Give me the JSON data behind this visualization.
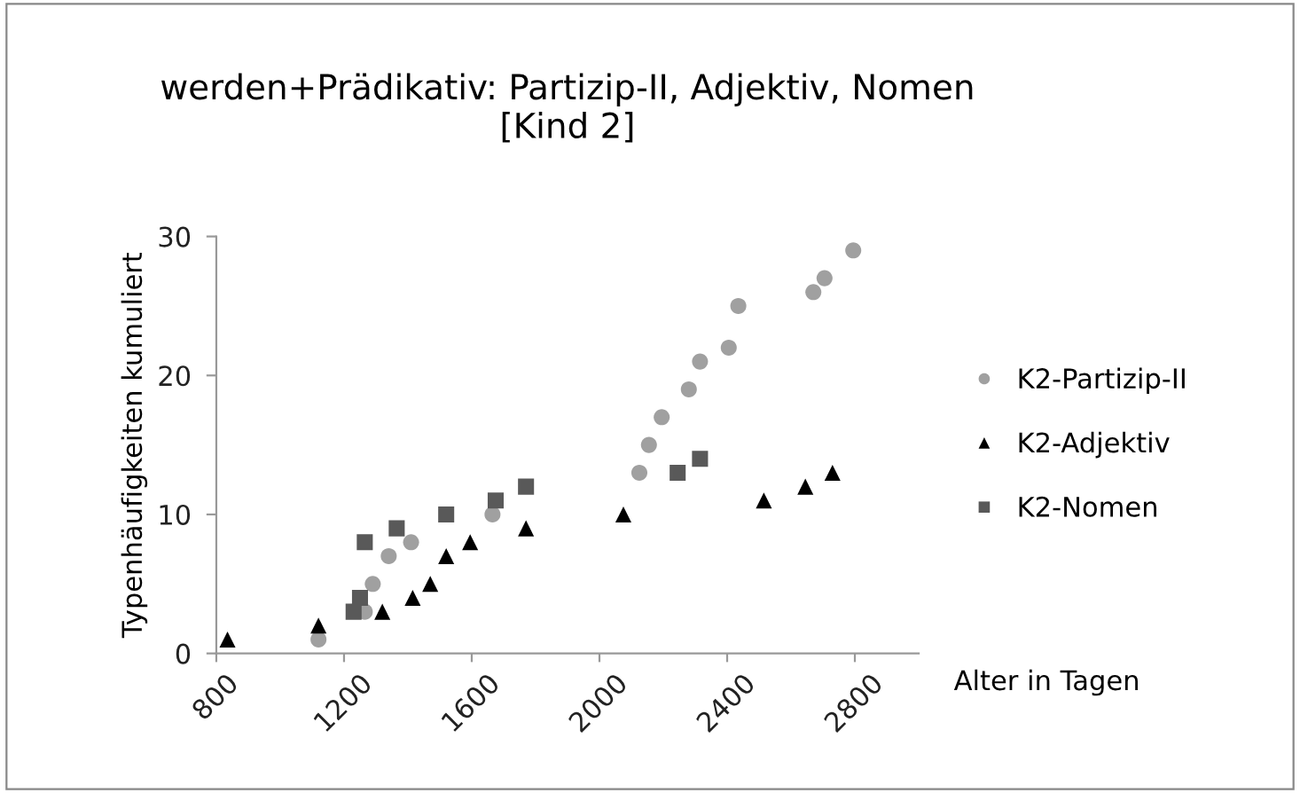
{
  "chart_data": {
    "type": "scatter",
    "title": "werden+Prädikativ: Partizip-II, Adjektiv, Nomen\n[Kind 2]",
    "xlabel": "Alter in Tagen",
    "ylabel": "Typenhäufigkeiten kumuliert",
    "series": [
      {
        "name": "K2-Partizip-II",
        "color": "#a0a0a0",
        "marker": "circle",
        "x": [
          1120,
          1265,
          1290,
          1340,
          1410,
          1665,
          2125,
          2155,
          2195,
          2280,
          2315,
          2405,
          2435,
          2670,
          2705,
          2795
        ],
        "values": [
          1,
          3,
          5,
          7,
          8,
          10,
          13,
          15,
          17,
          19,
          21,
          22,
          25,
          26,
          27,
          29
        ]
      },
      {
        "name": "K2-Adjektiv",
        "color": "#000000",
        "marker": "triangle",
        "x": [
          835,
          1120,
          1320,
          1415,
          1470,
          1520,
          1595,
          1770,
          2075,
          2515,
          2645,
          2730
        ],
        "values": [
          1,
          2,
          3,
          4,
          5,
          7,
          8,
          9,
          10,
          11,
          12,
          13
        ]
      },
      {
        "name": "K2-Nomen",
        "color": "#595959",
        "marker": "square",
        "x": [
          1230,
          1250,
          1265,
          1365,
          1520,
          1675,
          1770,
          2245,
          2315
        ],
        "values": [
          3,
          4,
          8,
          9,
          10,
          11,
          12,
          13,
          14
        ]
      }
    ],
    "xlim": [
      800,
      3000
    ],
    "xticks": [
      800,
      1200,
      1600,
      2000,
      2400,
      2800
    ],
    "ylim": [
      0,
      30
    ],
    "yticks": [
      0,
      10,
      20,
      30
    ],
    "grid": false,
    "legend": "right"
  }
}
